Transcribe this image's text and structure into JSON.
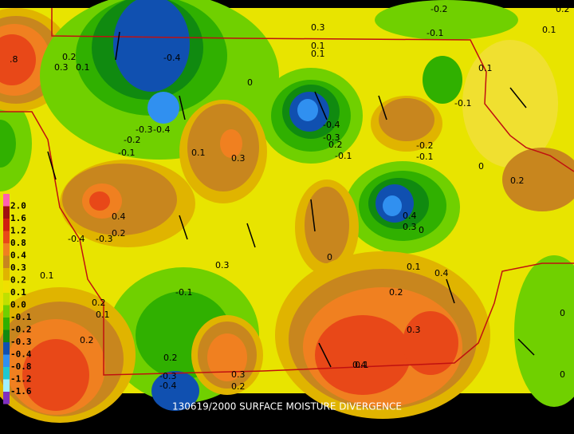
{
  "caption": "130619/2000 SURFACE MOISTURE DIVERGENCE",
  "legend": {
    "labels": [
      "2.0",
      "1.6",
      "1.2",
      "0.8",
      "0.4",
      "0.3",
      "0.2",
      "0.1",
      "0.0",
      "-0.1",
      "-0.2",
      "-0.3",
      "-0.4",
      "-0.8",
      "-1.2",
      "-1.6"
    ],
    "colors": [
      "#ff60b0",
      "#a01010",
      "#d02010",
      "#e84818",
      "#f08020",
      "#c8861e",
      "#e0b400",
      "#f0e000",
      "#c0e000",
      "#70d000",
      "#30b000",
      "#108a10",
      "#1050b0",
      "#3090f0",
      "#20c8d0",
      "#a0f0ff",
      "#8030c0"
    ]
  },
  "contour_labels": [
    "0.3",
    "0.1",
    "0.1",
    "-0.2",
    "-0.1",
    "0.2",
    "0.1",
    ".8",
    "0.2",
    "0.3",
    "0.1",
    "-0.4",
    "0",
    "0.1",
    "-0.1",
    "-0.3",
    "-0.4",
    "-0.4",
    "-0.3",
    "-0.2",
    "0.2",
    "-0.1",
    "0.1",
    "-0.1",
    "0.3",
    "-0.2",
    "-0.1",
    "0",
    "0.2",
    "0.4",
    "-0.4",
    "-0.3",
    "0.1",
    "0.3",
    "0.2",
    "0",
    "0.1",
    "0.2",
    "-0.1",
    "0.2",
    "0.1",
    "0.4",
    "0.2",
    "0.3",
    "0.1",
    "0",
    "0.4",
    "0.3",
    "0.2",
    "-0.3",
    "-0.4",
    "0.2",
    "0.3",
    "0.4",
    "0",
    "0"
  ]
}
